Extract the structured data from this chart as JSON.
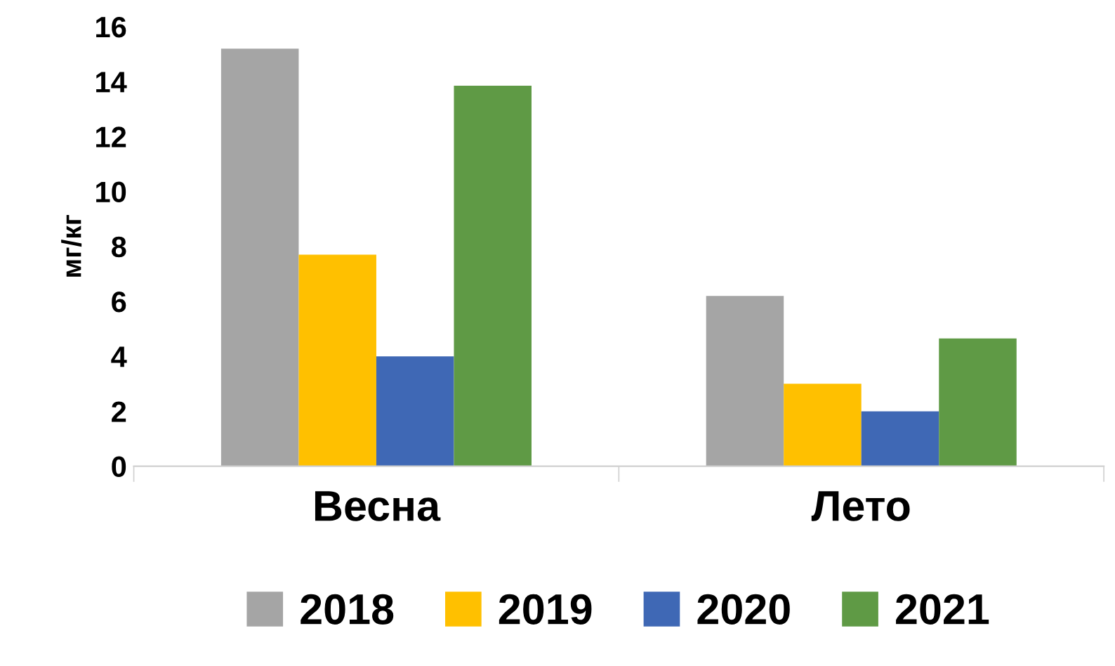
{
  "chart_data": {
    "type": "bar",
    "ylabel": "мг/кг",
    "categories": [
      "Весна",
      "Лето"
    ],
    "series": [
      {
        "name": "2018",
        "color": "#a5a5a5",
        "values": [
          15.2,
          6.2
        ]
      },
      {
        "name": "2019",
        "color": "#ffc000",
        "values": [
          7.7,
          3.0
        ]
      },
      {
        "name": "2020",
        "color": "#3f68b5",
        "values": [
          4.0,
          2.0
        ]
      },
      {
        "name": "2021",
        "color": "#5f9a45",
        "values": [
          13.85,
          4.65
        ]
      }
    ],
    "ylim": [
      0,
      16
    ],
    "yticks": [
      0,
      2,
      4,
      6,
      8,
      10,
      12,
      14,
      16
    ],
    "grid": false,
    "legend": "bottom"
  }
}
